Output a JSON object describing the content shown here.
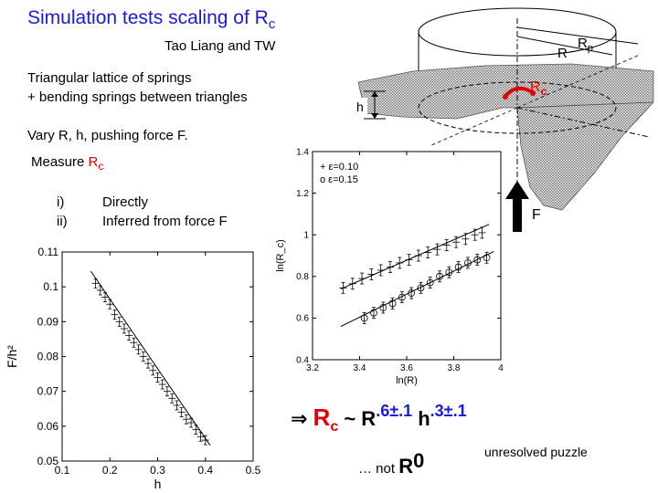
{
  "slide": {
    "title_main": "Simulation tests scaling of R",
    "title_sub": "c",
    "authors": "Tao Liang and TW",
    "line1": "Triangular lattice of springs",
    "line2": "+ bending springs between triangles",
    "vary": "Vary R, h, pushing force F.",
    "measure_prefix": "Measure ",
    "measure_r": "R",
    "measure_c": "c",
    "list": [
      {
        "num": "i)",
        "text": "Directly"
      },
      {
        "num": "ii)",
        "text": "Inferred from force F"
      }
    ],
    "formula": {
      "arrow": "⇒ ",
      "rc_r": "R",
      "rc_c": "c",
      "tilde": " ~ R",
      "exp1": ".6±.1",
      "h": " h",
      "exp2": ".3±.1"
    },
    "not_prefix": "… not ",
    "not_r": "R",
    "not_exp": "0",
    "puzzle": "unresolved puzzle"
  },
  "illustration": {
    "label_rp": "R",
    "label_rp_sub": "p",
    "label_r": "R",
    "label_rc": "R",
    "label_rc_sub": "c",
    "label_h": "h",
    "label_f": "F"
  },
  "chart_data": [
    {
      "type": "scatter",
      "xlabel": "h",
      "ylabel": "F/h²",
      "xlim": [
        0.1,
        0.5
      ],
      "ylim": [
        0.05,
        0.11
      ],
      "xticks": [
        0.1,
        0.2,
        0.3,
        0.4,
        0.5
      ],
      "xtick_labels": [
        "0.1",
        "0.2",
        "0.3",
        "0.4",
        "0.5"
      ],
      "yticks": [
        0.05,
        0.06,
        0.07,
        0.08,
        0.09,
        0.1,
        0.11
      ],
      "ytick_labels": [
        "0.05",
        "0.06",
        "0.07",
        "0.08",
        "0.09",
        "0.1",
        "0.11"
      ],
      "fit": {
        "x": [
          0.16,
          0.41
        ],
        "y": [
          0.1045,
          0.0545
        ]
      },
      "series": [
        {
          "marker": "+",
          "x": [
            0.17,
            0.18,
            0.19,
            0.2,
            0.21,
            0.22,
            0.23,
            0.24,
            0.25,
            0.26,
            0.27,
            0.28,
            0.29,
            0.3,
            0.31,
            0.32,
            0.33,
            0.34,
            0.35,
            0.36,
            0.37,
            0.38,
            0.39,
            0.4
          ],
          "y": [
            0.101,
            0.099,
            0.097,
            0.095,
            0.092,
            0.09,
            0.088,
            0.086,
            0.084,
            0.082,
            0.08,
            0.078,
            0.076,
            0.074,
            0.072,
            0.07,
            0.068,
            0.066,
            0.064,
            0.062,
            0.061,
            0.059,
            0.057,
            0.056
          ]
        }
      ]
    },
    {
      "type": "scatter",
      "xlabel": "ln(R)",
      "ylabel": "ln(R_c)",
      "xlim": [
        3.2,
        4.0
      ],
      "ylim": [
        0.4,
        1.4
      ],
      "xticks": [
        3.2,
        3.4,
        3.6,
        3.8,
        4.0
      ],
      "xtick_labels": [
        "3.2",
        "3.4",
        "3.6",
        "3.8",
        "4"
      ],
      "yticks": [
        0.4,
        0.6,
        0.8,
        1.0,
        1.2,
        1.4
      ],
      "ytick_labels": [
        "0.4",
        "0.6",
        "0.8",
        "1",
        "1.2",
        "1.4"
      ],
      "legend": {
        "position": "top-left"
      },
      "series": [
        {
          "name": "ε=0.10",
          "marker": "+",
          "x": [
            3.33,
            3.37,
            3.41,
            3.45,
            3.49,
            3.53,
            3.57,
            3.61,
            3.65,
            3.69,
            3.73,
            3.77,
            3.81,
            3.85,
            3.89,
            3.92
          ],
          "y": [
            0.745,
            0.765,
            0.79,
            0.81,
            0.83,
            0.845,
            0.865,
            0.88,
            0.9,
            0.915,
            0.93,
            0.95,
            0.965,
            0.98,
            1.0,
            1.01
          ],
          "fit": {
            "x": [
              3.32,
              3.95
            ],
            "y": [
              0.74,
              1.05
            ]
          }
        },
        {
          "name": "ε=0.15",
          "marker": "o",
          "x": [
            3.42,
            3.46,
            3.5,
            3.54,
            3.58,
            3.62,
            3.66,
            3.7,
            3.74,
            3.78,
            3.82,
            3.86,
            3.9,
            3.94
          ],
          "y": [
            0.6,
            0.625,
            0.65,
            0.67,
            0.7,
            0.72,
            0.745,
            0.77,
            0.8,
            0.82,
            0.845,
            0.865,
            0.88,
            0.89
          ],
          "fit": {
            "x": [
              3.32,
              3.97
            ],
            "y": [
              0.56,
              0.92
            ]
          }
        }
      ]
    }
  ]
}
